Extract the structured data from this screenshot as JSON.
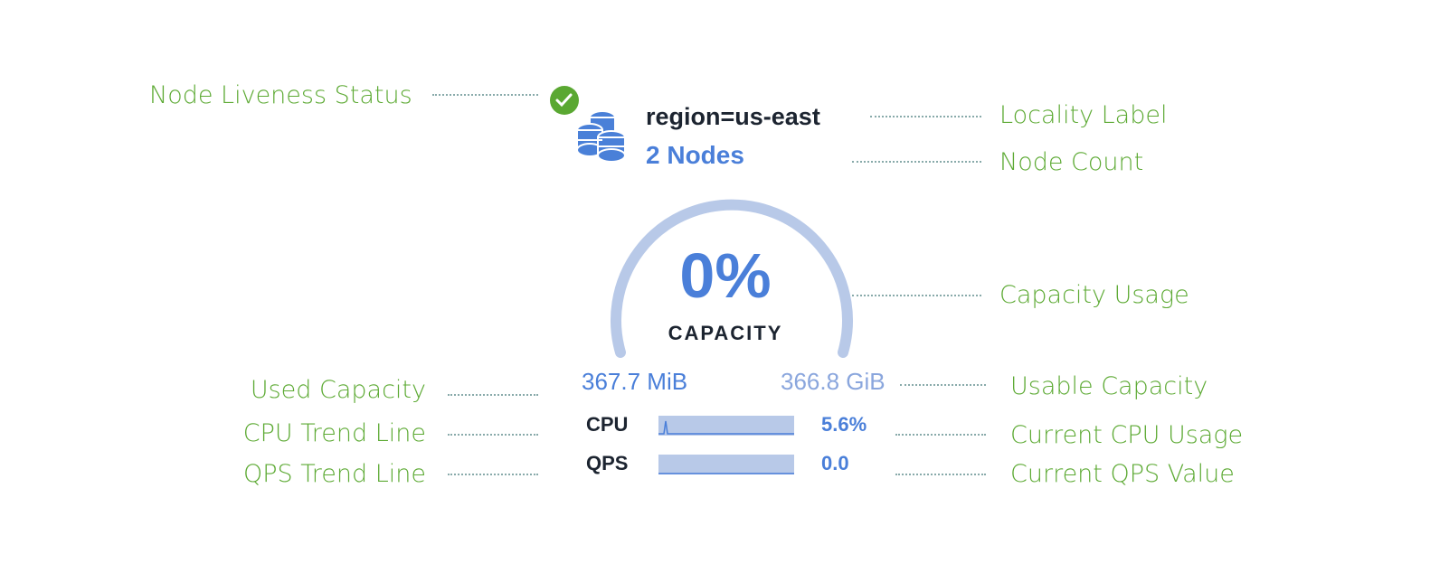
{
  "annotations": {
    "liveness": "Node Liveness Status",
    "locality": "Locality Label",
    "node_count": "Node Count",
    "capacity_usage": "Capacity Usage",
    "used_capacity": "Used Capacity",
    "usable_capacity": "Usable Capacity",
    "cpu_trend": "CPU Trend Line",
    "cpu_current": "Current CPU Usage",
    "qps_trend": "QPS Trend Line",
    "qps_current": "Current QPS Value"
  },
  "card": {
    "status": "live",
    "locality": "region=us-east",
    "nodes": "2 Nodes",
    "capacity_percent": "0%",
    "capacity_fraction": 0.0,
    "capacity_label": "CAPACITY",
    "used": "367.7 MiB",
    "usable": "366.8 GiB",
    "cpu_label": "CPU",
    "cpu_value": "5.6%",
    "qps_label": "QPS",
    "qps_value": "0.0"
  },
  "colors": {
    "annotation": "#5daa34",
    "accent": "#4a7fd9",
    "gauge": "#b8c9e8",
    "status_ok": "#5aa832"
  }
}
